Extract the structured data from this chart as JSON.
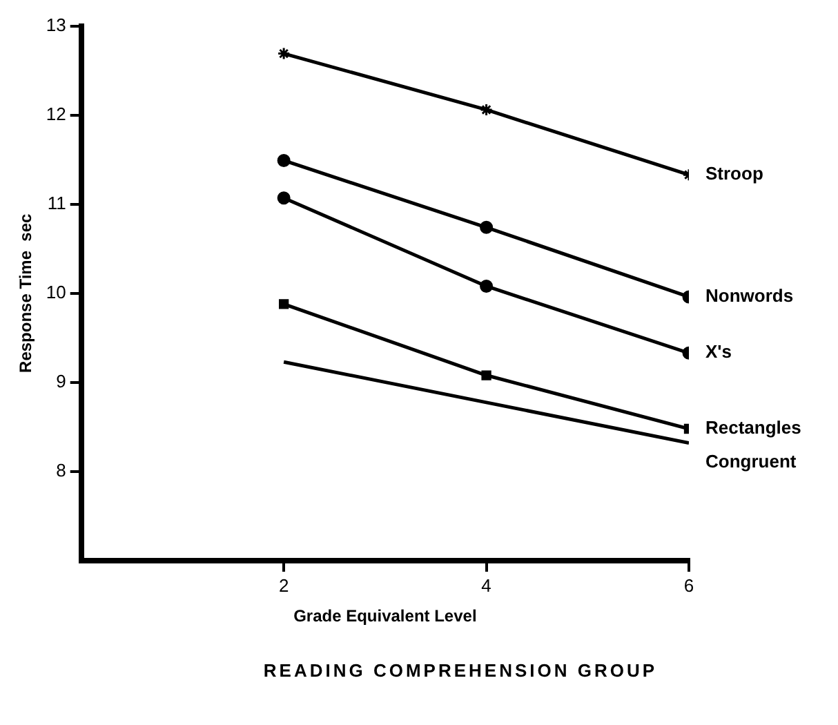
{
  "chart_data": {
    "type": "line",
    "xlabel": "Grade Equivalent Level",
    "ylabel": "Response Time  sec",
    "xlim": [
      0,
      6
    ],
    "xticks": [
      2,
      4,
      6
    ],
    "ylim": [
      7,
      13
    ],
    "yticks": [
      8,
      9,
      10,
      11,
      12,
      13
    ],
    "grid": false,
    "legend": false,
    "series": [
      {
        "name": "Stroop",
        "color": "#000000",
        "marker": "cross",
        "x": [
          2,
          4,
          6
        ],
        "values": [
          12.69,
          12.06,
          11.33
        ]
      },
      {
        "name": "Nonwords",
        "color": "#000000",
        "marker": "circle",
        "x": [
          2,
          4,
          6
        ],
        "values": [
          11.49,
          10.74,
          9.96
        ]
      },
      {
        "name": "X's",
        "color": "#000000",
        "marker": "circle",
        "x": [
          2,
          4,
          6
        ],
        "values": [
          11.07,
          10.08,
          9.33
        ]
      },
      {
        "name": "Rectangles",
        "color": "#000000",
        "marker": "square",
        "x": [
          2,
          4,
          6
        ],
        "values": [
          9.88,
          9.08,
          8.48
        ]
      },
      {
        "name": "Congruent",
        "color": "#000000",
        "marker": "none",
        "x": [
          2,
          6
        ],
        "values": [
          9.23,
          8.32
        ]
      }
    ],
    "annotations": [
      "READING COMPREHENSION GROUP"
    ]
  }
}
